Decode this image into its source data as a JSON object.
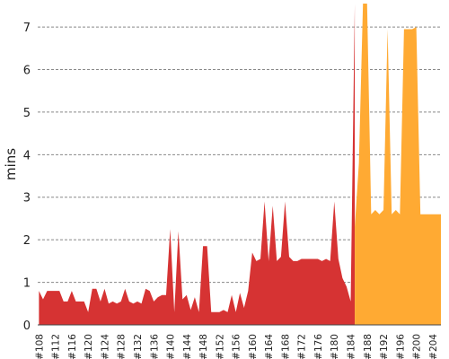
{
  "chart_data": {
    "type": "area",
    "ylabel": "mins",
    "xlabel": "",
    "title": "",
    "ylim": [
      0,
      7.55
    ],
    "y_ticks": [
      0,
      1,
      2,
      3,
      4,
      5,
      6,
      7
    ],
    "grid": "horizontal-dashed",
    "x_tick_labels": [
      "#108",
      "#112",
      "#116",
      "#120",
      "#124",
      "#128",
      "#132",
      "#136",
      "#140",
      "#144",
      "#148",
      "#152",
      "#156",
      "#160",
      "#164",
      "#168",
      "#172",
      "#176",
      "#180",
      "#184",
      "#188",
      "#192",
      "#196",
      "#200",
      "#204"
    ],
    "series": [
      {
        "color": "#d63333",
        "x": [
          108,
          109,
          110,
          111,
          112,
          113,
          114,
          115,
          116,
          117,
          118,
          119,
          120,
          121,
          122,
          123,
          124,
          125,
          126,
          127,
          128,
          129,
          130,
          131,
          132,
          133,
          134,
          135,
          136,
          137,
          138,
          139,
          140,
          141,
          142,
          143,
          144,
          145,
          146,
          147,
          148,
          149,
          150,
          151,
          152,
          153,
          154,
          155,
          156,
          157,
          158,
          159,
          160,
          161,
          162,
          163,
          164,
          165,
          166,
          167,
          168,
          169,
          170,
          171,
          172,
          173,
          174,
          175,
          176,
          177,
          178,
          179,
          180,
          181,
          182,
          183,
          184,
          185
        ],
        "values": [
          0.8,
          0.6,
          0.8,
          0.8,
          0.8,
          0.8,
          0.55,
          0.55,
          0.8,
          0.55,
          0.55,
          0.55,
          0.3,
          0.85,
          0.85,
          0.55,
          0.85,
          0.5,
          0.55,
          0.5,
          0.55,
          0.85,
          0.55,
          0.5,
          0.55,
          0.5,
          0.85,
          0.8,
          0.55,
          0.65,
          0.7,
          0.7,
          2.25,
          0.3,
          2.2,
          0.6,
          0.7,
          0.35,
          0.65,
          0.3,
          1.85,
          1.85,
          0.3,
          0.3,
          0.3,
          0.35,
          0.3,
          0.7,
          0.3,
          0.75,
          0.4,
          0.8,
          1.7,
          1.5,
          1.55,
          2.9,
          1.5,
          2.8,
          1.5,
          1.6,
          2.9,
          1.6,
          1.5,
          1.5,
          1.55,
          1.55,
          1.55,
          1.55,
          1.55,
          1.5,
          1.55,
          1.5,
          2.9,
          1.55,
          1.1,
          0.9,
          0.55,
          7.55
        ]
      },
      {
        "color": "#ffaa33",
        "x": [
          185,
          186,
          187,
          188,
          189,
          190,
          191,
          192,
          193,
          194,
          195,
          196,
          197,
          198,
          199,
          200,
          201,
          202,
          203,
          204,
          205,
          206
        ],
        "values": [
          2.3,
          3.8,
          7.55,
          7.55,
          2.6,
          2.7,
          2.6,
          2.7,
          6.95,
          2.6,
          2.7,
          2.6,
          6.95,
          6.95,
          6.95,
          7.0,
          2.6,
          2.6,
          2.6,
          2.6,
          2.6,
          2.6
        ]
      }
    ]
  }
}
